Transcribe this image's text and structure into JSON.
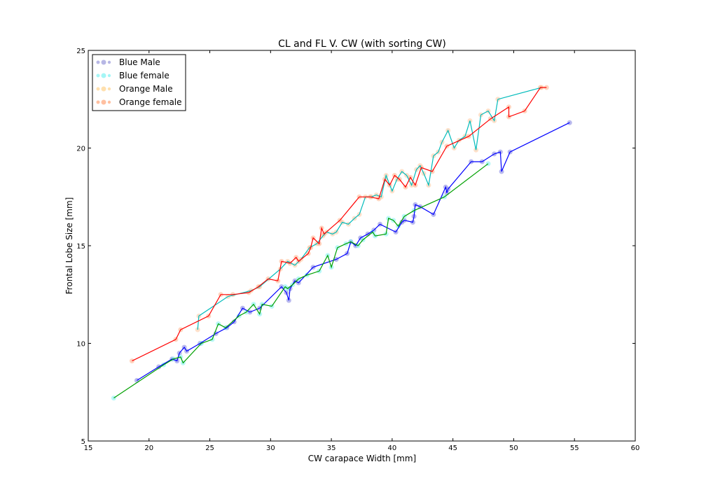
{
  "chart_data": {
    "type": "line",
    "title": "CL and FL V. CW (with sorting CW)",
    "xlabel": "CW carapace Width [mm]",
    "ylabel": "Frontal  Lobe  Size [mm]",
    "xlim": [
      15,
      60
    ],
    "ylim": [
      5,
      25
    ],
    "xticks": [
      "15",
      "20",
      "25",
      "30",
      "35",
      "40",
      "45",
      "50",
      "55",
      "60"
    ],
    "yticks": [
      "5",
      "10",
      "15",
      "20",
      "25"
    ],
    "grid": false,
    "legend_position": "top-left",
    "legend": [
      {
        "label": "Blue Male",
        "color": "#7b7bd0"
      },
      {
        "label": "Blue female",
        "color": "#7ff2f2"
      },
      {
        "label": "Orange Male",
        "color": "#ffd89a"
      },
      {
        "label": "Orange female",
        "color": "#ffb08a"
      }
    ],
    "series": [
      {
        "color": "#0000ff",
        "marker_color": "#8080e0",
        "x": [
          19.0,
          20.8,
          21.9,
          22.3,
          22.5,
          22.9,
          23.1,
          24.2,
          25.5,
          26.4,
          27.0,
          27.7,
          28.3,
          29.1,
          30.9,
          31.3,
          31.5,
          31.6,
          32.0,
          32.3,
          33.5,
          35.4,
          36.3,
          36.6,
          37.0,
          37.4,
          38.0,
          38.5,
          39.0,
          40.3,
          40.8,
          41.0,
          41.7,
          41.8,
          41.9,
          42.3,
          43.4,
          44.4,
          44.5,
          44.6,
          46.5,
          47.4,
          48.4,
          48.9,
          49.0,
          49.7,
          54.6
        ],
        "y": [
          8.1,
          8.8,
          9.2,
          9.1,
          9.5,
          9.8,
          9.6,
          10.0,
          10.5,
          10.8,
          11.1,
          11.8,
          11.6,
          11.8,
          12.9,
          12.6,
          12.2,
          12.8,
          13.2,
          13.1,
          13.9,
          14.3,
          14.6,
          15.2,
          15.0,
          15.4,
          15.6,
          15.8,
          16.1,
          15.7,
          16.2,
          16.3,
          16.2,
          16.5,
          17.1,
          17.0,
          16.6,
          18.0,
          17.7,
          17.9,
          19.3,
          19.3,
          19.7,
          19.8,
          18.8,
          19.8,
          21.3
        ]
      },
      {
        "color": "#00a000",
        "marker_color": "#80f0f0",
        "x": [
          17.1,
          21.2,
          22.0,
          22.6,
          22.8,
          24.3,
          25.2,
          25.7,
          26.3,
          27.4,
          28.0,
          28.6,
          29.1,
          29.3,
          30.1,
          31.2,
          31.4,
          31.8,
          32.3,
          33.0,
          34.0,
          34.7,
          35.0,
          35.5,
          36.2,
          36.6,
          37.2,
          37.6,
          38.4,
          38.6,
          39.5,
          39.7,
          40.1,
          40.5,
          41.0,
          41.8,
          44.3,
          47.9
        ],
        "y": [
          7.2,
          8.9,
          9.2,
          9.3,
          9.0,
          10.0,
          10.2,
          11.0,
          10.8,
          11.4,
          11.6,
          12.0,
          11.5,
          12.0,
          11.9,
          12.9,
          12.8,
          13.0,
          13.3,
          13.5,
          13.7,
          14.5,
          13.9,
          14.9,
          15.1,
          15.2,
          15.0,
          15.3,
          15.7,
          15.5,
          15.6,
          16.4,
          16.3,
          16.0,
          16.5,
          16.8,
          17.5,
          19.2
        ]
      },
      {
        "color": "#00bbbb",
        "marker_color": "#ffc8a0",
        "x": [
          24.0,
          24.1,
          26.5,
          28.4,
          29.1,
          30.8,
          31.4,
          32.0,
          32.5,
          33.2,
          33.8,
          34.3,
          34.6,
          35.1,
          35.4,
          35.9,
          36.4,
          36.9,
          37.3,
          37.8,
          38.3,
          38.7,
          39.1,
          39.5,
          40.0,
          40.4,
          40.8,
          41.2,
          41.6,
          42.0,
          42.3,
          42.6,
          43.0,
          43.4,
          43.8,
          44.1,
          44.6,
          45.1,
          45.5,
          46.0,
          46.4,
          46.9,
          47.3,
          47.9,
          48.4,
          48.7,
          52.3
        ],
        "y": [
          10.7,
          11.4,
          12.4,
          12.7,
          12.9,
          13.8,
          14.2,
          14.0,
          14.3,
          14.9,
          15.1,
          15.5,
          15.7,
          15.6,
          15.7,
          16.2,
          16.1,
          16.4,
          16.6,
          17.5,
          17.5,
          17.6,
          17.5,
          18.6,
          17.8,
          18.4,
          18.8,
          18.6,
          18.1,
          18.9,
          19.1,
          18.7,
          18.1,
          19.6,
          19.8,
          20.3,
          20.9,
          20.0,
          20.4,
          20.6,
          21.4,
          19.9,
          21.7,
          21.9,
          21.4,
          22.5,
          23.1
        ]
      },
      {
        "color": "#ff0000",
        "marker_color": "#ffb08a",
        "x": [
          18.6,
          22.2,
          22.6,
          24.9,
          25.9,
          26.9,
          28.2,
          29.0,
          29.8,
          30.6,
          30.9,
          31.6,
          32.1,
          32.3,
          33.1,
          33.3,
          33.5,
          34.0,
          34.2,
          34.4,
          35.7,
          37.3,
          38.2,
          38.9,
          39.4,
          39.8,
          40.2,
          40.6,
          41.1,
          41.5,
          41.9,
          42.4,
          43.3,
          44.5,
          46.3,
          48.1,
          49.6,
          49.6,
          50.9,
          52.2,
          52.7
        ],
        "y": [
          9.1,
          10.2,
          10.7,
          11.4,
          12.5,
          12.5,
          12.6,
          12.9,
          13.3,
          13.2,
          14.2,
          14.1,
          14.4,
          14.2,
          14.6,
          14.9,
          15.4,
          15.1,
          15.9,
          15.6,
          16.3,
          17.5,
          17.5,
          17.4,
          18.4,
          18.1,
          18.6,
          18.4,
          18.0,
          18.5,
          18.1,
          19.0,
          18.8,
          20.1,
          20.6,
          21.5,
          22.1,
          21.6,
          21.9,
          23.1,
          23.1
        ]
      }
    ]
  }
}
